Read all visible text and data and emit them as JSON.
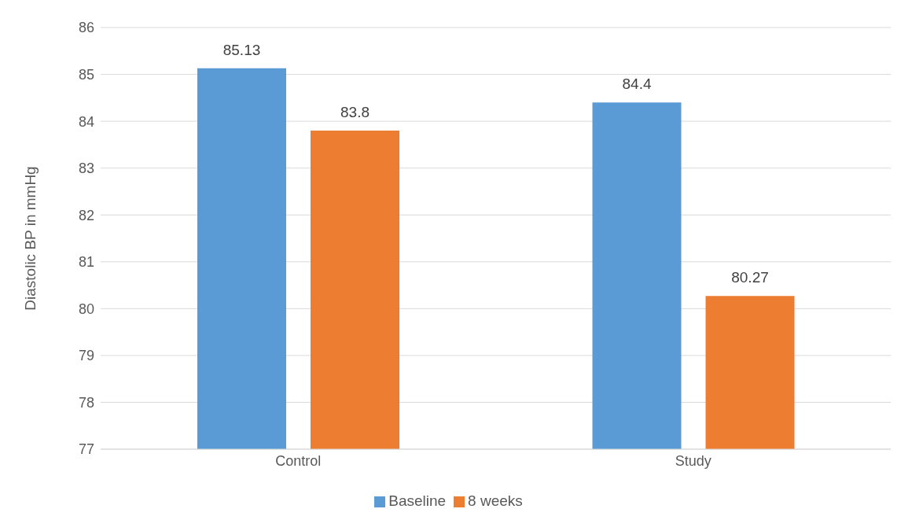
{
  "chart_data": {
    "type": "bar",
    "ylabel": "Diastolic BP in mmHg",
    "categories": [
      "Control",
      "Study"
    ],
    "series": [
      {
        "name": "Baseline",
        "color": "#5b9bd5",
        "values": [
          85.13,
          84.4
        ]
      },
      {
        "name": "8 weeks",
        "color": "#ed7d31",
        "values": [
          83.8,
          80.27
        ]
      }
    ],
    "ylim": [
      77,
      86
    ],
    "yticks": [
      77,
      78,
      79,
      80,
      81,
      82,
      83,
      84,
      85,
      86
    ],
    "grid": "y",
    "legend": "bottom",
    "data_labels": true
  }
}
